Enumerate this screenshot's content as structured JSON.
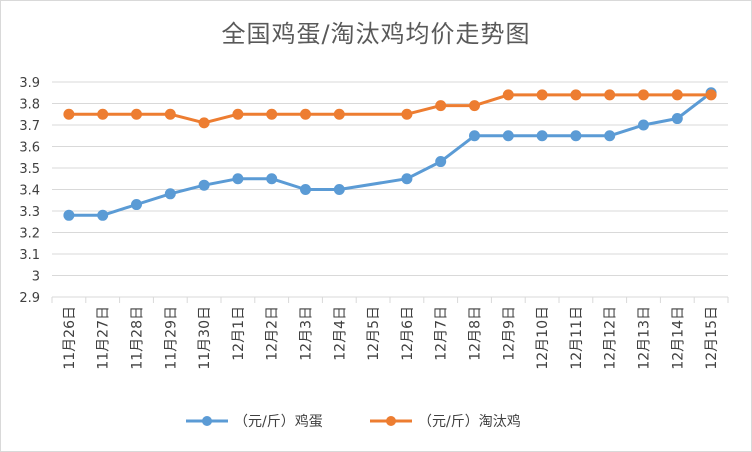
{
  "chart_data": {
    "type": "line",
    "title": "全国鸡蛋/淘汰鸡均价走势图",
    "xlabel": "",
    "ylabel": "",
    "categories": [
      "11月26日",
      "11月27日",
      "11月28日",
      "11月29日",
      "11月30日",
      "12月1日",
      "12月2日",
      "12月3日",
      "12月4日",
      "12月5日",
      "12月6日",
      "12月7日",
      "12月8日",
      "12月9日",
      "12月10日",
      "12月11日",
      "12月12日",
      "12月13日",
      "12月14日",
      "12月15日"
    ],
    "y_ticks": [
      "2.9",
      "3",
      "3.1",
      "3.2",
      "3.3",
      "3.4",
      "3.5",
      "3.6",
      "3.7",
      "3.8",
      "3.9"
    ],
    "ylim": [
      2.9,
      3.9
    ],
    "grid": true,
    "legend_position": "bottom",
    "series": [
      {
        "name": "（元/斤）鸡蛋",
        "color": "#5b9bd5",
        "values": [
          3.28,
          3.28,
          3.33,
          3.38,
          3.42,
          3.45,
          3.45,
          3.4,
          3.4,
          null,
          3.45,
          3.53,
          3.65,
          3.65,
          3.65,
          3.65,
          3.65,
          3.7,
          3.73,
          3.85
        ]
      },
      {
        "name": "（元/斤）淘汰鸡",
        "color": "#ed7d31",
        "values": [
          3.75,
          3.75,
          3.75,
          3.75,
          3.71,
          3.75,
          3.75,
          3.75,
          3.75,
          null,
          3.75,
          3.79,
          3.79,
          3.84,
          3.84,
          3.84,
          3.84,
          3.84,
          3.84,
          3.84
        ]
      }
    ]
  }
}
